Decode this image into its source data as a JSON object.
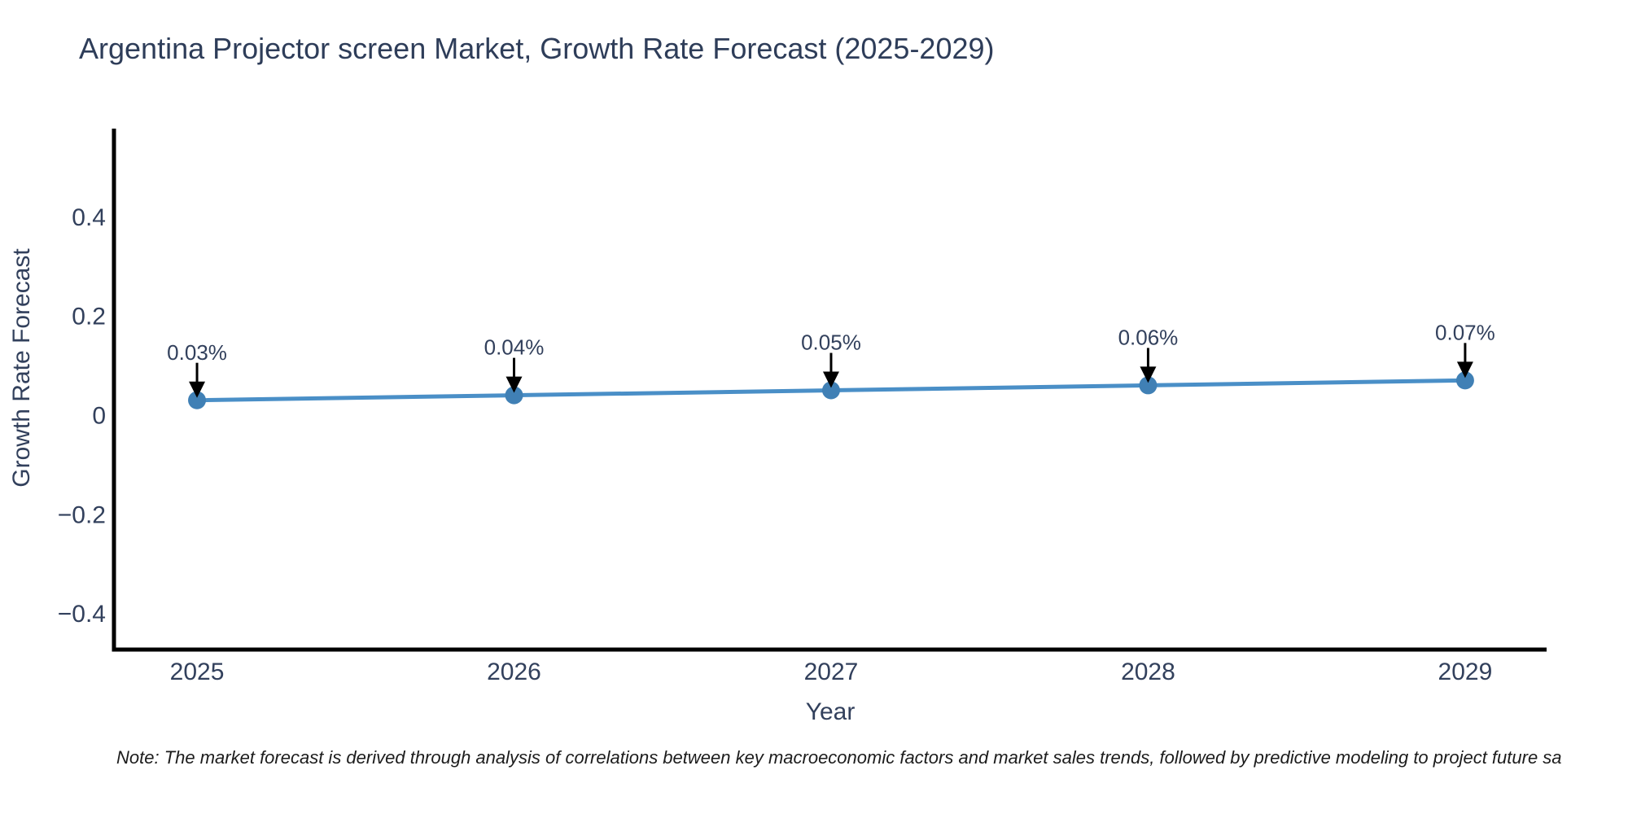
{
  "page": {
    "background": "#ffffff"
  },
  "note": {
    "text": "Note: The market forecast is derived through analysis of correlations between key macroeconomic factors and market sales trends, followed by predictive modeling to project future sa"
  },
  "chart_data": {
    "type": "line",
    "title": "Argentina Projector screen Market, Growth Rate Forecast (2025-2029)",
    "xlabel": "Year",
    "ylabel": "Growth Rate Forecast",
    "x": [
      2025,
      2026,
      2027,
      2028,
      2029
    ],
    "y": [
      0.03,
      0.04,
      0.05,
      0.06,
      0.07
    ],
    "series": [
      {
        "name": "Growth Rate Forecast",
        "values": [
          0.03,
          0.04,
          0.05,
          0.06,
          0.07
        ]
      }
    ],
    "point_labels": [
      "0.03%",
      "0.04%",
      "0.05%",
      "0.06%",
      "0.07%"
    ],
    "x_ticks": [
      {
        "value": 2025,
        "label": "2025"
      },
      {
        "value": 2026,
        "label": "2026"
      },
      {
        "value": 2027,
        "label": "2027"
      },
      {
        "value": 2028,
        "label": "2028"
      },
      {
        "value": 2029,
        "label": "2029"
      }
    ],
    "y_ticks": [
      {
        "value": 0.4,
        "label": "0.4"
      },
      {
        "value": 0.2,
        "label": "0.2"
      },
      {
        "value": 0,
        "label": "0"
      },
      {
        "value": -0.2,
        "label": "−0.2"
      },
      {
        "value": -0.4,
        "label": "−0.4"
      }
    ],
    "xlim": [
      2024.738,
      2029.257
    ],
    "ylim": [
      -0.473,
      0.578
    ],
    "grid": false,
    "legend": null,
    "colors": {
      "line": "#4a8fc7",
      "marker": "#4080b5",
      "axis": "#000000",
      "tick_text": "#32405c",
      "annotation_text": "#32405c",
      "annotation_arrow": "#000000"
    }
  }
}
